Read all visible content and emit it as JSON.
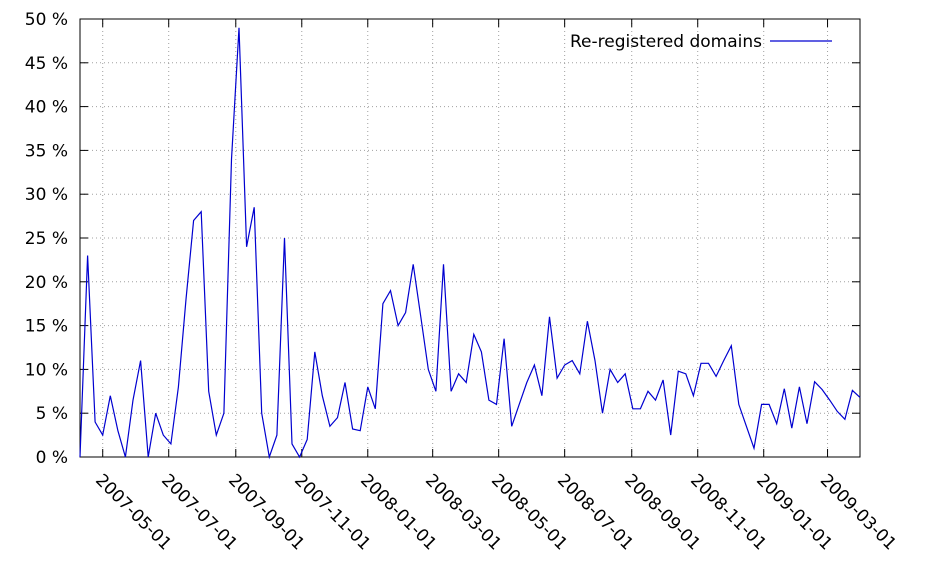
{
  "chart_data": {
    "type": "line",
    "x": [
      "2007-04-10",
      "2007-04-17",
      "2007-04-24",
      "2007-05-01",
      "2007-05-08",
      "2007-05-15",
      "2007-05-22",
      "2007-05-29",
      "2007-06-05",
      "2007-06-12",
      "2007-06-19",
      "2007-06-26",
      "2007-07-03",
      "2007-07-10",
      "2007-07-17",
      "2007-07-24",
      "2007-07-31",
      "2007-08-07",
      "2007-08-14",
      "2007-08-21",
      "2007-08-28",
      "2007-09-04",
      "2007-09-11",
      "2007-09-18",
      "2007-09-25",
      "2007-10-02",
      "2007-10-09",
      "2007-10-16",
      "2007-10-23",
      "2007-10-30",
      "2007-11-06",
      "2007-11-13",
      "2007-11-20",
      "2007-11-27",
      "2007-12-04",
      "2007-12-11",
      "2007-12-18",
      "2007-12-25",
      "2008-01-01",
      "2008-01-08",
      "2008-01-15",
      "2008-01-22",
      "2008-01-29",
      "2008-02-05",
      "2008-02-12",
      "2008-02-19",
      "2008-02-26",
      "2008-03-04",
      "2008-03-11",
      "2008-03-18",
      "2008-03-25",
      "2008-04-01",
      "2008-04-08",
      "2008-04-15",
      "2008-04-22",
      "2008-04-29",
      "2008-05-06",
      "2008-05-13",
      "2008-05-20",
      "2008-05-27",
      "2008-06-03",
      "2008-06-10",
      "2008-06-17",
      "2008-06-24",
      "2008-07-01",
      "2008-07-08",
      "2008-07-15",
      "2008-07-22",
      "2008-07-29",
      "2008-08-05",
      "2008-08-12",
      "2008-08-19",
      "2008-08-26",
      "2008-09-02",
      "2008-09-09",
      "2008-09-16",
      "2008-09-23",
      "2008-09-30",
      "2008-10-07",
      "2008-10-14",
      "2008-10-21",
      "2008-10-28",
      "2008-11-04",
      "2008-11-11",
      "2008-11-18",
      "2008-11-25",
      "2008-12-02",
      "2008-12-09",
      "2008-12-16",
      "2008-12-23",
      "2008-12-30",
      "2009-01-06",
      "2009-01-13",
      "2009-01-20",
      "2009-01-27",
      "2009-02-03",
      "2009-02-10",
      "2009-02-17",
      "2009-02-24",
      "2009-03-03",
      "2009-03-10",
      "2009-03-17",
      "2009-03-24",
      "2009-03-31"
    ],
    "series": [
      {
        "name": "Re-registered domains",
        "color": "#0000d0",
        "values": [
          0,
          23,
          4,
          2.5,
          7,
          3,
          0,
          6.5,
          11,
          0,
          5,
          2.5,
          1.5,
          8,
          18,
          27,
          28,
          7.5,
          2.5,
          5,
          34,
          49,
          24,
          28.5,
          5,
          0,
          2.5,
          25,
          1.5,
          0,
          2,
          12,
          7,
          3.5,
          4.5,
          8.5,
          3.2,
          3,
          8,
          5.5,
          17.5,
          19,
          15,
          16.5,
          22,
          16,
          10,
          7.5,
          22,
          7.5,
          9.5,
          8.5,
          14,
          12,
          6.5,
          6,
          13.5,
          3.5,
          6,
          8.5,
          10.5,
          7,
          16,
          9,
          10.5,
          11,
          9.5,
          15.5,
          11,
          5,
          10,
          8.5,
          9.5,
          5.5,
          5.5,
          7.5,
          6.5,
          8.8,
          2.5,
          9.8,
          9.5,
          7,
          10.7,
          10.7,
          9.2,
          11,
          12.7,
          6,
          3.5,
          1,
          6,
          6,
          3.8,
          7.8,
          3.3,
          8,
          3.8,
          8.6,
          7.7,
          6.5,
          5.2,
          4.3,
          7.6,
          6.8
        ]
      }
    ],
    "xlim": [
      "2007-04-10",
      "2009-03-31"
    ],
    "xticks": [
      "2007-05-01",
      "2007-07-01",
      "2007-09-01",
      "2007-11-01",
      "2008-01-01",
      "2008-03-01",
      "2008-05-01",
      "2008-07-01",
      "2008-09-01",
      "2008-11-01",
      "2009-01-01",
      "2009-03-01"
    ],
    "ylim": [
      0,
      50
    ],
    "yticks": [
      {
        "value": 0,
        "label": "0 %"
      },
      {
        "value": 5,
        "label": "5 %"
      },
      {
        "value": 10,
        "label": "10 %"
      },
      {
        "value": 15,
        "label": "15 %"
      },
      {
        "value": 20,
        "label": "20 %"
      },
      {
        "value": 25,
        "label": "25 %"
      },
      {
        "value": 30,
        "label": "30 %"
      },
      {
        "value": 35,
        "label": "35 %"
      },
      {
        "value": 40,
        "label": "40 %"
      },
      {
        "value": 45,
        "label": "45 %"
      },
      {
        "value": 50,
        "label": "50 %"
      }
    ],
    "grid": true,
    "legend": "top-right"
  }
}
